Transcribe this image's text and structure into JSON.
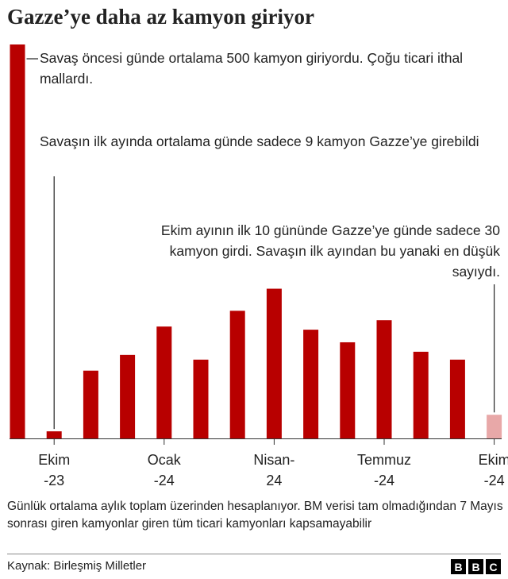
{
  "title": "Gazze’ye daha az kamyon giriyor",
  "chart_data": {
    "type": "bar",
    "ylim": [
      0,
      500
    ],
    "values": [
      500,
      9,
      86,
      106,
      142,
      100,
      162,
      190,
      138,
      122,
      150,
      110,
      100,
      30
    ],
    "highlight_color": "#b80000",
    "partial_color": "#e8a8a8",
    "xtick_labels": [
      {
        "top": "Ekim",
        "bottom": "-23",
        "index": 1
      },
      {
        "top": "Ocak",
        "bottom": "-24",
        "index": 4
      },
      {
        "top": "Nisan-",
        "bottom": "24",
        "index": 7
      },
      {
        "top": "Temmuz",
        "bottom": "-24",
        "index": 10
      },
      {
        "top": "Ekim",
        "bottom": "-24",
        "index": 13
      }
    ],
    "annotations": {
      "prewar": "Savaş öncesi günde ortalama 500 kamyon giriyordu. Çoğu ticari ithal mallardı.",
      "first_month": "Savaşın ilk ayında ortalama günde sadece 9 kamyon Gazze’ye girebildi",
      "october": "Ekim ayının ilk 10 gününde Gazze’ye günde sadece 30 kamyon girdi. Savaşın ilk ayından bu yanaki en düşük sayıydı."
    }
  },
  "note": "Günlük ortalama aylık toplam üzerinden hesaplanıyor. BM verisi tam olmadığından 7 Mayıs sonrası giren kamyonlar giren tüm ticari kamyonları kapsamayabilir",
  "source": "Kaynak: Birleşmiş Milletler",
  "logo": [
    "B",
    "B",
    "C"
  ]
}
